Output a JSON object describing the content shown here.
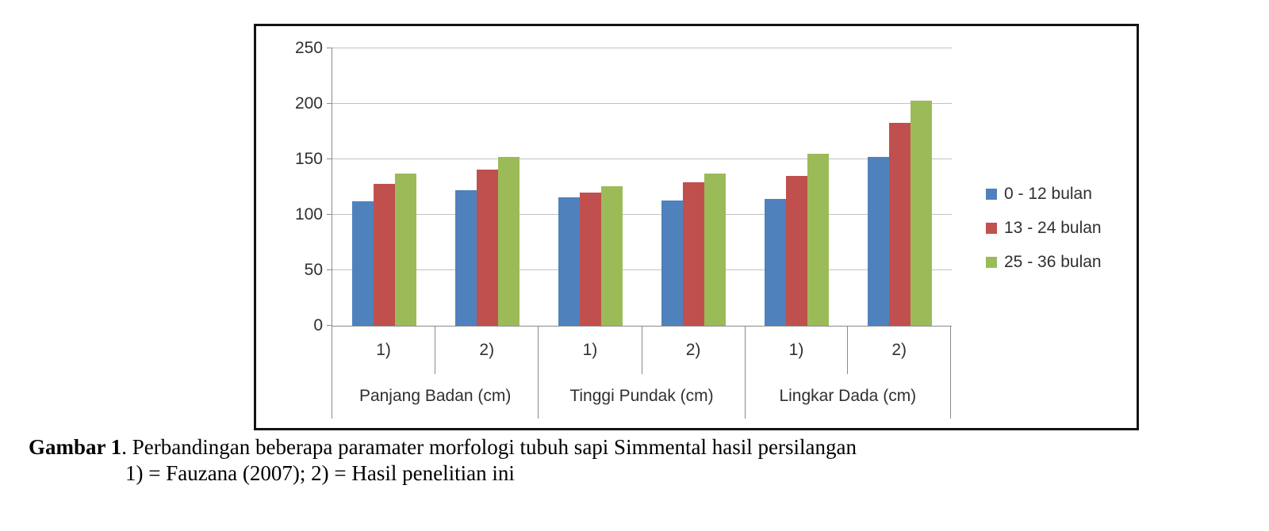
{
  "figure": {
    "caption_label": "Gambar 1",
    "caption_text": ". Perbandingan beberapa paramater morfologi tubuh sapi Simmental hasil persilangan",
    "caption_line2": "1) = Fauzana (2007); 2) = Hasil penelitian ini"
  },
  "chart_data": {
    "type": "bar",
    "title": "",
    "groups": [
      "Panjang Badan (cm)",
      "Tinggi Pundak (cm)",
      "Lingkar Dada (cm)"
    ],
    "subcategories_per_group": [
      "1)",
      "2)"
    ],
    "categories": [
      "Panjang Badan (cm) 1)",
      "Panjang Badan (cm) 2)",
      "Tinggi Pundak (cm) 1)",
      "Tinggi Pundak (cm) 2)",
      "Lingkar Dada (cm) 1)",
      "Lingkar Dada (cm) 2)"
    ],
    "series": [
      {
        "name": "0 - 12 bulan",
        "color": "#4F81BD",
        "values": [
          112,
          122,
          116,
          113,
          114,
          152
        ]
      },
      {
        "name": "13 - 24 bulan",
        "color": "#C0504D",
        "values": [
          128,
          141,
          120,
          129,
          135,
          183
        ]
      },
      {
        "name": "25 - 36 bulan",
        "color": "#9BBB59",
        "values": [
          137,
          152,
          126,
          137,
          155,
          203
        ]
      }
    ],
    "xlabel": "",
    "ylabel": "",
    "ylim": [
      0,
      250
    ],
    "yticks": [
      0,
      50,
      100,
      150,
      200,
      250
    ],
    "grid": true,
    "legend_position": "right"
  },
  "colors": {
    "bar_blue": "#4F81BD",
    "bar_red": "#C0504D",
    "bar_green": "#9BBB59",
    "gridline": "#C2C2C2",
    "axis_line": "#8A8A8A",
    "frame_border": "#141414",
    "axis_text": "#303030"
  }
}
